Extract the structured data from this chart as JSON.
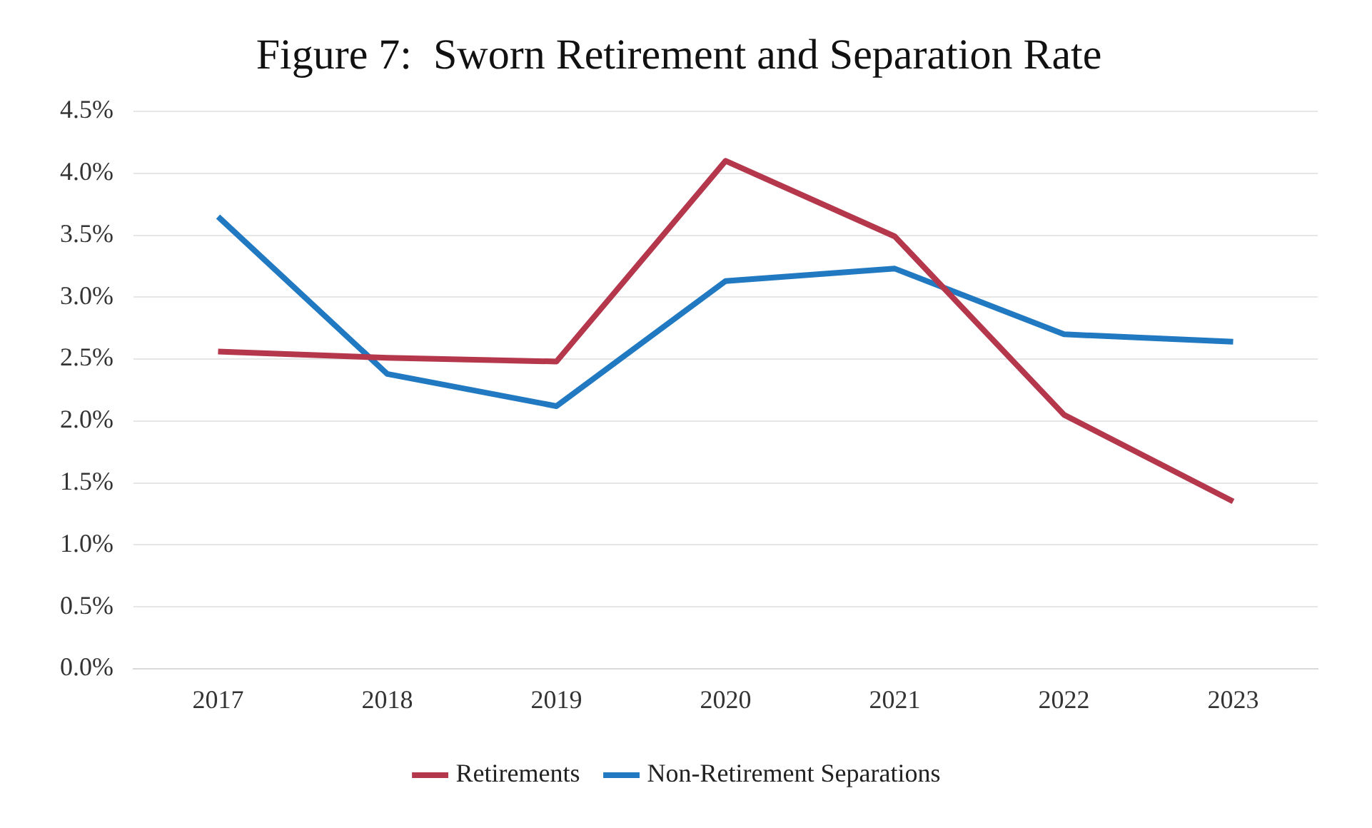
{
  "chart_data": {
    "type": "line",
    "title": "Figure 7:  Sworn Retirement and Separation Rate",
    "categories": [
      "2017",
      "2018",
      "2019",
      "2020",
      "2021",
      "2022",
      "2023"
    ],
    "series": [
      {
        "name": "Retirements",
        "color": "#b5374c",
        "values": [
          2.56,
          2.51,
          2.48,
          4.1,
          3.49,
          2.05,
          1.35
        ]
      },
      {
        "name": "Non-Retirement Separations",
        "color": "#2179c2",
        "values": [
          3.65,
          2.38,
          2.12,
          3.13,
          3.23,
          2.7,
          2.64
        ]
      }
    ],
    "ylim": [
      0,
      4.5
    ],
    "yticks": [
      {
        "value": 0,
        "label": "0.0%"
      },
      {
        "value": 0.5,
        "label": "0.5%"
      },
      {
        "value": 1,
        "label": "1.0%"
      },
      {
        "value": 1.5,
        "label": "1.5%"
      },
      {
        "value": 2,
        "label": "2.0%"
      },
      {
        "value": 2.5,
        "label": "2.5%"
      },
      {
        "value": 3,
        "label": "3.0%"
      },
      {
        "value": 3.5,
        "label": "3.5%"
      },
      {
        "value": 4,
        "label": "4.0%"
      },
      {
        "value": 4.5,
        "label": "4.5%"
      }
    ],
    "grid": "y",
    "legend": "bottom",
    "marker": "none",
    "line_style": "solid"
  }
}
